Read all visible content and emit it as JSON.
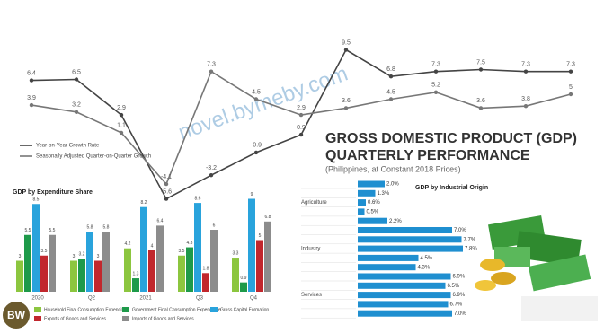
{
  "header": {
    "title": "GROSS DOMESTIC PRODUCT (GDP)",
    "subtitle": "QUARTERLY PERFORMANCE",
    "note": "(Philippines, at Constant 2018 Prices)",
    "logo": "BW",
    "watermark": "novel.bymeby.com"
  },
  "chart_data": [
    {
      "type": "line",
      "ylim": [
        -7,
        10
      ],
      "series": [
        {
          "name": "Year-on-Year Growth Rate",
          "color": "#444444",
          "values": [
            6.4,
            6.5,
            2.9,
            -5.6,
            -3.2,
            -0.9,
            0.9,
            9.5,
            6.8,
            7.3,
            7.5,
            7.3,
            7.3
          ]
        },
        {
          "name": "Seasonally Adjusted Quarter-on-Quarter Growth",
          "color": "#777777",
          "values": [
            3.9,
            3.2,
            1.1,
            -4.1,
            7.3,
            4.5,
            2.9,
            3.6,
            4.5,
            5.2,
            3.6,
            3.8,
            5.0
          ]
        }
      ]
    },
    {
      "type": "bar",
      "title": "GDP by Expenditure Share",
      "ylim": [
        0,
        10
      ],
      "categories": [
        "2020",
        "Q2",
        "2021",
        "Q3",
        "Q4"
      ],
      "series": [
        {
          "name": "Household Final Consumption Expenditure",
          "color": "#8cc63f",
          "values": [
            3.0,
            3.0,
            4.2,
            3.5,
            3.3
          ]
        },
        {
          "name": "Government Final Consumption Expenditure",
          "color": "#1e9a4a",
          "values": [
            5.5,
            3.2,
            1.3,
            4.3,
            0.9
          ]
        },
        {
          "name": "Gross Capital Formation",
          "color": "#29a3dc",
          "values": [
            8.5,
            5.8,
            8.2,
            8.6,
            9.0
          ]
        },
        {
          "name": "Exports of Goods and Services",
          "color": "#c1272d",
          "values": [
            3.5,
            3.0,
            4.0,
            1.8,
            5.0
          ]
        },
        {
          "name": "Imports of Goods and Services",
          "color": "#8c8c8c",
          "values": [
            5.5,
            5.8,
            6.4,
            6.0,
            6.8
          ]
        }
      ]
    },
    {
      "type": "hbar",
      "title": "GDP by Industrial Origin",
      "xlim": [
        0,
        8
      ],
      "color": "#1f8fd0",
      "categories": [
        null,
        null,
        "Agriculture",
        null,
        null,
        null,
        null,
        "Industry",
        null,
        null,
        null,
        null,
        "Services",
        null,
        null
      ],
      "values": [
        2.0,
        1.3,
        0.6,
        0.5,
        2.2,
        7.0,
        7.7,
        7.8,
        4.5,
        4.3,
        6.9,
        6.5,
        6.9,
        6.7,
        7.0
      ],
      "value_labels": [
        "2.0%",
        "1.3%",
        "0.6%",
        "0.5%",
        "2.2%",
        "7.0%",
        "7.7%",
        "7.8%",
        "4.5%",
        "4.3%",
        "6.9%",
        "6.5%",
        "6.9%",
        "6.7%",
        "7.0%"
      ]
    }
  ]
}
